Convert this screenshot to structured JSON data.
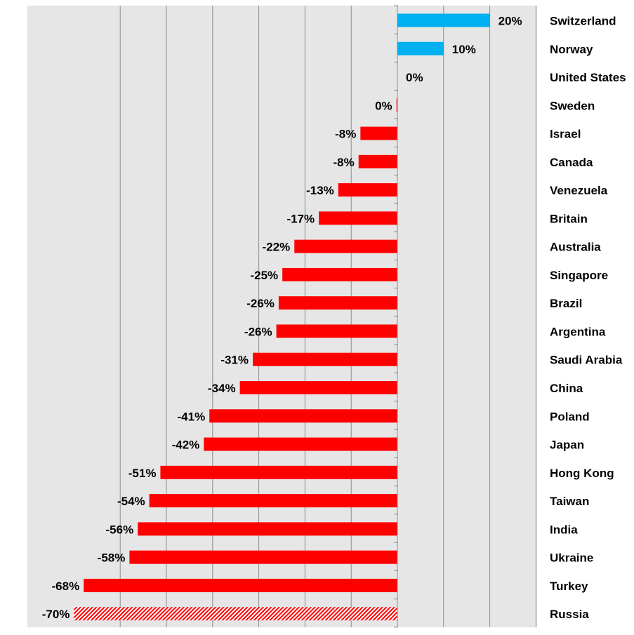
{
  "chart_data": {
    "type": "bar",
    "orientation": "horizontal",
    "title": "",
    "xlabel": "",
    "ylabel": "",
    "xlim": [
      -70,
      30
    ],
    "grid": true,
    "gridline_step": 10,
    "categories": [
      "Switzerland",
      "Norway",
      "United States",
      "Sweden",
      "Israel",
      "Canada",
      "Venezuela",
      "Britain",
      "Australia",
      "Singapore",
      "Brazil",
      "Argentina",
      "Saudi Arabia",
      "China",
      "Poland",
      "Japan",
      "Hong Kong",
      "Taiwan",
      "India",
      "Ukraine",
      "Turkey",
      "Russia"
    ],
    "values": [
      20,
      10,
      0,
      -0.2,
      -8,
      -8.4,
      -12.8,
      -17,
      -22.3,
      -24.9,
      -25.7,
      -26.2,
      -31.3,
      -34.1,
      -40.7,
      -41.9,
      -51.3,
      -53.7,
      -56.2,
      -58,
      -67.9,
      -70
    ],
    "data_labels": [
      "20%",
      "10%",
      "0%",
      "0%",
      "-8%",
      "-8%",
      "-13%",
      "-17%",
      "-22%",
      "-25%",
      "-26%",
      "-26%",
      "-31%",
      "-34%",
      "-41%",
      "-42%",
      "-51%",
      "-54%",
      "-56%",
      "-58%",
      "-68%",
      "-70%"
    ],
    "highlighted": [
      "Russia"
    ],
    "colors": {
      "positive": "#00B0F0",
      "negative": "#FF0000",
      "plot_background": "#E6E6E6",
      "gridline": "#8C8C8C",
      "highlight_hatch": "#FF0000"
    }
  }
}
